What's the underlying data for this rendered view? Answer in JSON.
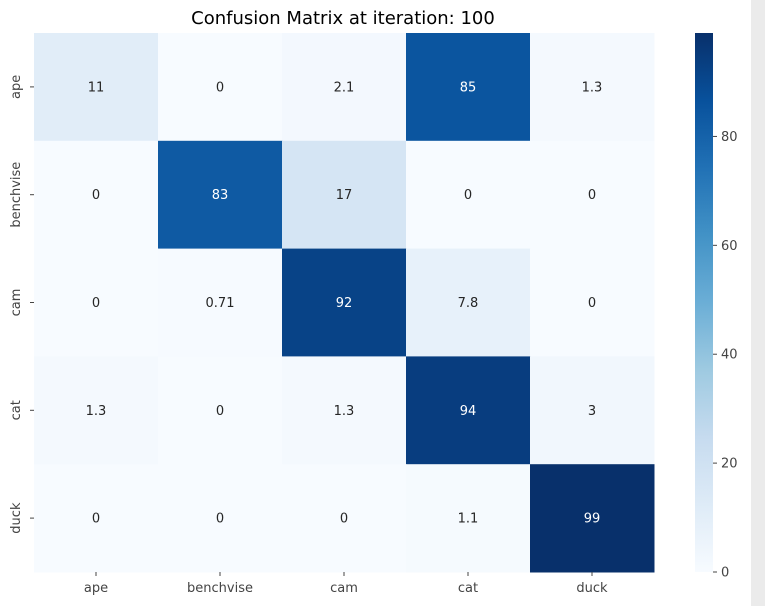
{
  "chart_data": {
    "type": "heatmap",
    "title": "Confusion Matrix at iteration: 100",
    "xlabel": "",
    "ylabel": "",
    "x_categories": [
      "ape",
      "benchvise",
      "cam",
      "cat",
      "duck"
    ],
    "y_categories": [
      "ape",
      "benchvise",
      "cam",
      "cat",
      "duck"
    ],
    "values": [
      [
        11,
        0,
        2.1,
        85,
        1.3
      ],
      [
        0,
        83,
        17,
        0,
        0
      ],
      [
        0,
        0.71,
        92,
        7.8,
        0
      ],
      [
        1.3,
        0,
        1.3,
        94,
        3
      ],
      [
        0,
        0,
        0,
        1.1,
        99
      ]
    ],
    "labels": [
      [
        "11",
        "0",
        "2.1",
        "85",
        "1.3"
      ],
      [
        "0",
        "83",
        "17",
        "0",
        "0"
      ],
      [
        "0",
        "0.71",
        "92",
        "7.8",
        "0"
      ],
      [
        "1.3",
        "0",
        "1.3",
        "94",
        "3"
      ],
      [
        "0",
        "0",
        "0",
        "1.1",
        "99"
      ]
    ],
    "colormap": "Blues",
    "value_range": [
      0,
      99
    ],
    "colorbar": {
      "ticks": [
        0,
        20,
        40,
        60,
        80
      ],
      "tick_labels": [
        "0",
        "20",
        "40",
        "60",
        "80"
      ]
    },
    "grid": false,
    "legend": "colorbar-right"
  }
}
